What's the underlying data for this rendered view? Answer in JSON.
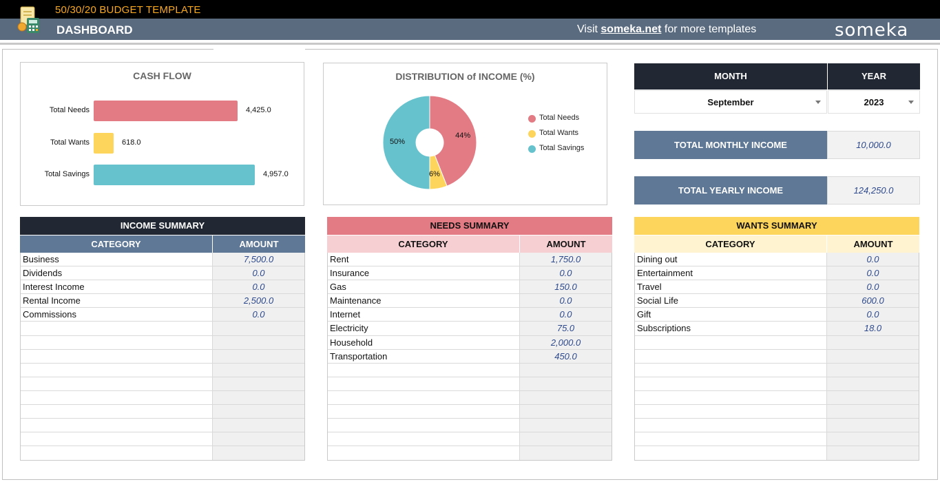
{
  "header": {
    "template_title": "50/30/20 BUDGET TEMPLATE",
    "page_title": "DASHBOARD",
    "visit_prefix": "Visit ",
    "visit_link": "someka.net",
    "visit_suffix": " for more templates",
    "brand": "someka",
    "icon": "calculator-document-icon"
  },
  "cash_flow": {
    "title": "CASH FLOW",
    "chart_data": {
      "type": "bar",
      "orientation": "horizontal",
      "categories": [
        "Total Needs",
        "Total Wants",
        "Total Savings"
      ],
      "values": [
        4425.0,
        618.0,
        4957.0
      ],
      "value_labels": [
        "4,425.0",
        "618.0",
        "4,957.0"
      ],
      "colors": [
        "#e27b84",
        "#fdd55c",
        "#66c2cd"
      ]
    }
  },
  "distribution": {
    "title": "DISTRIBUTION of INCOME (%)",
    "chart_data": {
      "type": "pie",
      "donut": true,
      "categories": [
        "Total Needs",
        "Total Wants",
        "Total Savings"
      ],
      "values": [
        44,
        6,
        50
      ],
      "value_labels": [
        "44%",
        "6%",
        "50%"
      ],
      "colors": [
        "#e27b84",
        "#fdd55c",
        "#66c2cd"
      ],
      "legend": "right"
    }
  },
  "period": {
    "month_label": "MONTH",
    "year_label": "YEAR",
    "month_value": "September",
    "year_value": "2023"
  },
  "kpis": {
    "monthly_label": "TOTAL MONTHLY INCOME",
    "monthly_value": "10,000.0",
    "yearly_label": "TOTAL YEARLY INCOME",
    "yearly_value": "124,250.0"
  },
  "tables": {
    "income": {
      "title": "INCOME SUMMARY",
      "col_category": "CATEGORY",
      "col_amount": "AMOUNT",
      "title_bg": "#222833",
      "title_fg": "#ffffff",
      "head_bg": "#5f7896",
      "head_fg": "#ffffff",
      "rows": [
        [
          "Business",
          "7,500.0"
        ],
        [
          "Dividends",
          "0.0"
        ],
        [
          "Interest Income",
          "0.0"
        ],
        [
          "Rental Income",
          "2,500.0"
        ],
        [
          "Commissions",
          "0.0"
        ],
        [
          "",
          ""
        ],
        [
          "",
          ""
        ],
        [
          "",
          ""
        ],
        [
          "",
          ""
        ],
        [
          "",
          ""
        ],
        [
          "",
          ""
        ],
        [
          "",
          ""
        ],
        [
          "",
          ""
        ],
        [
          "",
          ""
        ],
        [
          "",
          ""
        ]
      ]
    },
    "needs": {
      "title": "NEEDS SUMMARY",
      "col_category": "CATEGORY",
      "col_amount": "AMOUNT",
      "title_bg": "#e27b84",
      "title_fg": "#111111",
      "head_bg": "#f6cfd3",
      "head_fg": "#111111",
      "rows": [
        [
          "Rent",
          "1,750.0"
        ],
        [
          "Insurance",
          "0.0"
        ],
        [
          "Gas",
          "150.0"
        ],
        [
          "Maintenance",
          "0.0"
        ],
        [
          "Internet",
          "0.0"
        ],
        [
          "Electricity",
          "75.0"
        ],
        [
          "Household",
          "2,000.0"
        ],
        [
          "Transportation",
          "450.0"
        ],
        [
          "",
          ""
        ],
        [
          "",
          ""
        ],
        [
          "",
          ""
        ],
        [
          "",
          ""
        ],
        [
          "",
          ""
        ],
        [
          "",
          ""
        ],
        [
          "",
          ""
        ]
      ]
    },
    "wants": {
      "title": "WANTS SUMMARY",
      "col_category": "CATEGORY",
      "col_amount": "AMOUNT",
      "title_bg": "#fdd55c",
      "title_fg": "#111111",
      "head_bg": "#fff3d0",
      "head_fg": "#111111",
      "rows": [
        [
          "Dining out",
          "0.0"
        ],
        [
          "Entertainment",
          "0.0"
        ],
        [
          "Travel",
          "0.0"
        ],
        [
          "Social Life",
          "600.0"
        ],
        [
          "Gift",
          "0.0"
        ],
        [
          "Subscriptions",
          "18.0"
        ],
        [
          "",
          ""
        ],
        [
          "",
          ""
        ],
        [
          "",
          ""
        ],
        [
          "",
          ""
        ],
        [
          "",
          ""
        ],
        [
          "",
          ""
        ],
        [
          "",
          ""
        ],
        [
          "",
          ""
        ],
        [
          "",
          ""
        ]
      ]
    }
  }
}
